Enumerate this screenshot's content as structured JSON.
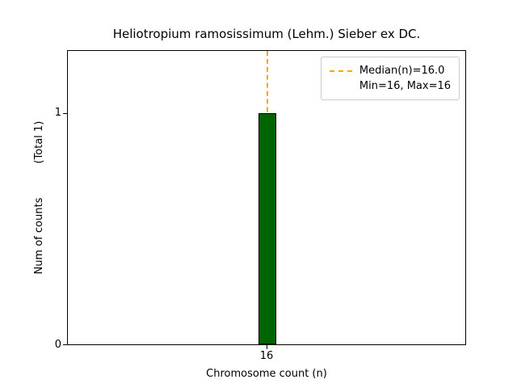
{
  "chart_data": {
    "type": "bar",
    "title": "Heliotropium ramosissimum (Lehm.) Sieber ex DC.",
    "xlabel": "Chromosome count (n)",
    "ylabel": "Num of counts",
    "ylabel_total": "(Total 1)",
    "categories": [
      "16"
    ],
    "values": [
      1
    ],
    "ylim": [
      0,
      1.27
    ],
    "grid": false,
    "legend_position": "upper right",
    "bar_color": "#006400",
    "bar_edge_color": "#000000",
    "median_line": {
      "value": 16.0,
      "color": "#FFA500",
      "style": "dashed"
    },
    "x_ticks": [
      "16"
    ],
    "y_ticks": [
      "0",
      "1"
    ],
    "legend": [
      {
        "sample": "dashed-line",
        "label": "Median(n)=16.0"
      },
      {
        "sample": "none",
        "label": "Min=16, Max=16"
      }
    ]
  }
}
